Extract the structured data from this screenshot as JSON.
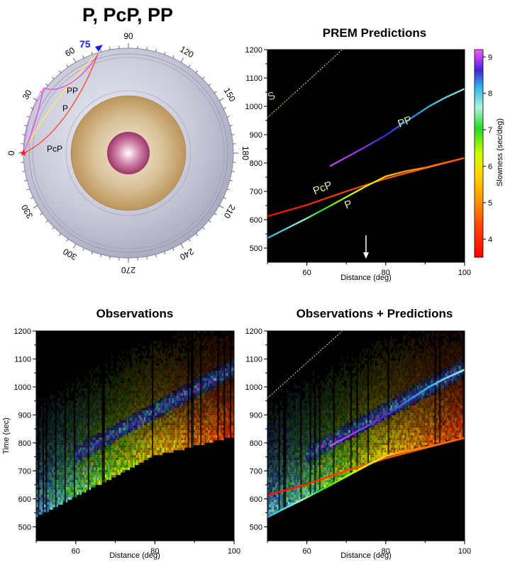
{
  "earth_diagram": {
    "title": "P, PcP, PP",
    "epicentral_distance_label": "75",
    "angle_labels": [
      "0",
      "30",
      "60",
      "90",
      "120",
      "150",
      "180",
      "210",
      "240",
      "270",
      "300",
      "330"
    ],
    "ray_labels": [
      "PP",
      "P",
      "PcP"
    ],
    "colors": {
      "mantle": "#b7b7cc",
      "outer_core": "#b98f4f",
      "inner_core": "#a8356c",
      "source": "#ff2020",
      "station": "#1a1aff"
    }
  },
  "chart_data": [
    {
      "id": "prem",
      "type": "line",
      "title": "PREM Predictions",
      "xlabel": "Distance (deg)",
      "ylabel": "",
      "xlim": [
        50,
        100
      ],
      "ylim": [
        450,
        1200
      ],
      "xticks": [
        60,
        80,
        100
      ],
      "yticks": [
        500,
        600,
        700,
        800,
        900,
        1000,
        1100,
        1200
      ],
      "background": "#000000",
      "series": [
        {
          "name": "S",
          "style": "dashed",
          "color": "#e8e8c8",
          "x": [
            50,
            69
          ],
          "y": [
            960,
            1200
          ]
        },
        {
          "name": "PP",
          "color": "gradient",
          "x": [
            66,
            75,
            80,
            85,
            91,
            95,
            100
          ],
          "y": [
            790,
            858,
            898,
            945,
            1000,
            1030,
            1062
          ],
          "slowness": [
            9.0,
            8.7,
            8.4,
            8.1,
            7.8,
            7.6,
            7.4
          ]
        },
        {
          "name": "PcP",
          "color": "gradient",
          "x": [
            50,
            60,
            70,
            80,
            90,
            100
          ],
          "y": [
            612,
            652,
            700,
            745,
            782,
            818
          ],
          "slowness": [
            3.7,
            4.0,
            4.4,
            4.6,
            4.7,
            4.8
          ]
        },
        {
          "name": "P",
          "color": "gradient",
          "x": [
            50,
            55,
            60,
            65,
            70,
            75,
            80,
            85,
            90,
            100
          ],
          "y": [
            535,
            570,
            605,
            642,
            680,
            718,
            753,
            771,
            784,
            818
          ],
          "slowness": [
            7.8,
            7.6,
            7.2,
            6.8,
            6.5,
            6.2,
            5.8,
            5.2,
            4.9,
            4.6
          ]
        }
      ],
      "annotations": [
        {
          "text": "S",
          "x": 50.5,
          "y": 1020
        },
        {
          "text": "PP",
          "x": 83.5,
          "y": 925
        },
        {
          "text": "PcP",
          "x": 62,
          "y": 688
        },
        {
          "text": "P",
          "x": 70,
          "y": 638
        }
      ],
      "arrow_at_x": 75,
      "colorbar": {
        "label": "Slowness (sec/deg)",
        "range": [
          3.5,
          9.2
        ],
        "ticks": [
          4,
          5,
          6,
          7,
          8,
          9
        ]
      }
    },
    {
      "id": "observations",
      "type": "heatmap",
      "title": "Observations",
      "xlabel": "Distance (deg)",
      "ylabel": "Time (sec)",
      "xlim": [
        50,
        100
      ],
      "ylim": [
        450,
        1200
      ],
      "xticks": [
        60,
        80,
        100
      ],
      "yticks": [
        500,
        600,
        700,
        800,
        900,
        1000,
        1100,
        1200
      ]
    },
    {
      "id": "obs_pred",
      "type": "heatmap",
      "title": "Observations + Predictions",
      "xlabel": "Distance (deg)",
      "ylabel": "",
      "xlim": [
        50,
        100
      ],
      "ylim": [
        450,
        1200
      ],
      "xticks": [
        60,
        80,
        100
      ],
      "yticks": [
        500,
        600,
        700,
        800,
        900,
        1000,
        1100,
        1200
      ]
    }
  ]
}
